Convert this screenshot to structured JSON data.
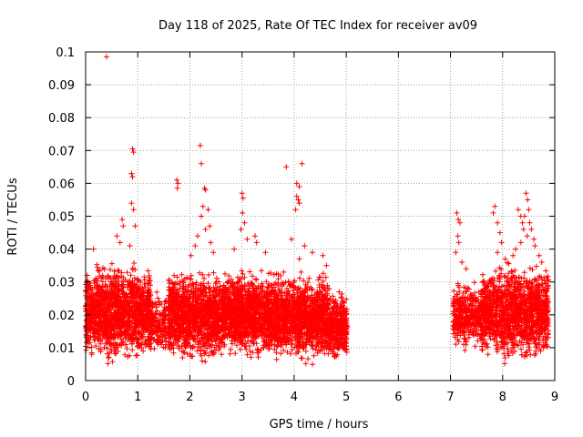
{
  "chart_data": {
    "type": "scatter",
    "title": "Day 118 of 2025, Rate Of TEC Index for receiver av09",
    "xlabel": "GPS time / hours",
    "ylabel": "ROTI / TECUs",
    "xlim": [
      0,
      9
    ],
    "ylim": [
      0,
      0.1
    ],
    "grid": true,
    "marker": "+",
    "series_color": "#ff0000",
    "x_ticks": [
      {
        "value": 0,
        "label": "0"
      },
      {
        "value": 1,
        "label": "1"
      },
      {
        "value": 2,
        "label": "2"
      },
      {
        "value": 3,
        "label": "3"
      },
      {
        "value": 4,
        "label": "4"
      },
      {
        "value": 5,
        "label": "5"
      },
      {
        "value": 6,
        "label": "6"
      },
      {
        "value": 7,
        "label": "7"
      },
      {
        "value": 8,
        "label": "8"
      },
      {
        "value": 9,
        "label": "9"
      }
    ],
    "y_ticks": [
      {
        "value": 0,
        "label": "0"
      },
      {
        "value": 0.01,
        "label": "0.01"
      },
      {
        "value": 0.02,
        "label": "0.02"
      },
      {
        "value": 0.03,
        "label": "0.03"
      },
      {
        "value": 0.04,
        "label": "0.04"
      },
      {
        "value": 0.05,
        "label": "0.05"
      },
      {
        "value": 0.06,
        "label": "0.06"
      },
      {
        "value": 0.07,
        "label": "0.07"
      },
      {
        "value": 0.08,
        "label": "0.08"
      },
      {
        "value": 0.09,
        "label": "0.09"
      },
      {
        "value": 0.1,
        "label": "0.1"
      }
    ],
    "data_segments": [
      {
        "x_start": 0.0,
        "x_end": 1.25,
        "y_min": 0.004,
        "y_max": 0.036,
        "density": 1400
      },
      {
        "x_start": 1.25,
        "x_end": 1.55,
        "y_min": 0.006,
        "y_max": 0.027,
        "density": 160
      },
      {
        "x_start": 1.58,
        "x_end": 2.65,
        "y_min": 0.004,
        "y_max": 0.034,
        "density": 1200
      },
      {
        "x_start": 2.65,
        "x_end": 3.65,
        "y_min": 0.005,
        "y_max": 0.034,
        "density": 1150
      },
      {
        "x_start": 3.65,
        "x_end": 4.65,
        "y_min": 0.004,
        "y_max": 0.033,
        "density": 1150
      },
      {
        "x_start": 4.65,
        "x_end": 5.02,
        "y_min": 0.005,
        "y_max": 0.028,
        "density": 380
      },
      {
        "x_start": 7.05,
        "x_end": 7.6,
        "y_min": 0.008,
        "y_max": 0.03,
        "density": 380
      },
      {
        "x_start": 7.6,
        "x_end": 8.88,
        "y_min": 0.004,
        "y_max": 0.036,
        "density": 1300
      }
    ],
    "outliers": [
      {
        "x": 0.4,
        "y": 0.0985
      },
      {
        "x": 0.9,
        "y": 0.0705
      },
      {
        "x": 0.92,
        "y": 0.0695
      },
      {
        "x": 0.88,
        "y": 0.063
      },
      {
        "x": 0.9,
        "y": 0.062
      },
      {
        "x": 0.88,
        "y": 0.054
      },
      {
        "x": 0.92,
        "y": 0.052
      },
      {
        "x": 0.7,
        "y": 0.049
      },
      {
        "x": 0.72,
        "y": 0.047
      },
      {
        "x": 0.66,
        "y": 0.042
      },
      {
        "x": 0.85,
        "y": 0.041
      },
      {
        "x": 0.15,
        "y": 0.04
      },
      {
        "x": 0.6,
        "y": 0.044
      },
      {
        "x": 0.95,
        "y": 0.047
      },
      {
        "x": 1.75,
        "y": 0.061
      },
      {
        "x": 1.77,
        "y": 0.06
      },
      {
        "x": 1.76,
        "y": 0.0585
      },
      {
        "x": 2.2,
        "y": 0.0715
      },
      {
        "x": 2.22,
        "y": 0.066
      },
      {
        "x": 2.28,
        "y": 0.0585
      },
      {
        "x": 2.3,
        "y": 0.058
      },
      {
        "x": 2.25,
        "y": 0.053
      },
      {
        "x": 2.35,
        "y": 0.052
      },
      {
        "x": 2.22,
        "y": 0.05
      },
      {
        "x": 2.3,
        "y": 0.046
      },
      {
        "x": 2.15,
        "y": 0.044
      },
      {
        "x": 2.1,
        "y": 0.041
      },
      {
        "x": 2.38,
        "y": 0.047
      },
      {
        "x": 2.4,
        "y": 0.042
      },
      {
        "x": 2.02,
        "y": 0.038
      },
      {
        "x": 2.45,
        "y": 0.039
      },
      {
        "x": 3.0,
        "y": 0.057
      },
      {
        "x": 3.02,
        "y": 0.0555
      },
      {
        "x": 3.01,
        "y": 0.051
      },
      {
        "x": 3.05,
        "y": 0.048
      },
      {
        "x": 2.98,
        "y": 0.046
      },
      {
        "x": 3.1,
        "y": 0.043
      },
      {
        "x": 3.25,
        "y": 0.044
      },
      {
        "x": 3.28,
        "y": 0.042
      },
      {
        "x": 2.85,
        "y": 0.04
      },
      {
        "x": 3.45,
        "y": 0.039
      },
      {
        "x": 3.85,
        "y": 0.065
      },
      {
        "x": 4.15,
        "y": 0.066
      },
      {
        "x": 4.05,
        "y": 0.06
      },
      {
        "x": 4.1,
        "y": 0.059
      },
      {
        "x": 4.05,
        "y": 0.056
      },
      {
        "x": 4.08,
        "y": 0.055
      },
      {
        "x": 4.1,
        "y": 0.054
      },
      {
        "x": 4.03,
        "y": 0.052
      },
      {
        "x": 3.95,
        "y": 0.043
      },
      {
        "x": 4.2,
        "y": 0.041
      },
      {
        "x": 4.35,
        "y": 0.039
      },
      {
        "x": 4.1,
        "y": 0.037
      },
      {
        "x": 4.55,
        "y": 0.038
      },
      {
        "x": 4.62,
        "y": 0.035
      },
      {
        "x": 7.12,
        "y": 0.051
      },
      {
        "x": 7.15,
        "y": 0.049
      },
      {
        "x": 7.18,
        "y": 0.048
      },
      {
        "x": 7.14,
        "y": 0.044
      },
      {
        "x": 7.16,
        "y": 0.042
      },
      {
        "x": 7.1,
        "y": 0.039
      },
      {
        "x": 7.22,
        "y": 0.036
      },
      {
        "x": 7.3,
        "y": 0.034
      },
      {
        "x": 7.85,
        "y": 0.053
      },
      {
        "x": 7.82,
        "y": 0.051
      },
      {
        "x": 7.9,
        "y": 0.048
      },
      {
        "x": 7.95,
        "y": 0.045
      },
      {
        "x": 7.98,
        "y": 0.042
      },
      {
        "x": 7.9,
        "y": 0.039
      },
      {
        "x": 8.05,
        "y": 0.037
      },
      {
        "x": 8.3,
        "y": 0.052
      },
      {
        "x": 8.35,
        "y": 0.05
      },
      {
        "x": 8.38,
        "y": 0.048
      },
      {
        "x": 8.4,
        "y": 0.046
      },
      {
        "x": 8.45,
        "y": 0.057
      },
      {
        "x": 8.48,
        "y": 0.055
      },
      {
        "x": 8.5,
        "y": 0.052
      },
      {
        "x": 8.42,
        "y": 0.05
      },
      {
        "x": 8.52,
        "y": 0.048
      },
      {
        "x": 8.55,
        "y": 0.046
      },
      {
        "x": 8.47,
        "y": 0.044
      },
      {
        "x": 8.6,
        "y": 0.043
      },
      {
        "x": 8.35,
        "y": 0.042
      },
      {
        "x": 8.25,
        "y": 0.04
      },
      {
        "x": 8.62,
        "y": 0.041
      },
      {
        "x": 8.7,
        "y": 0.038
      },
      {
        "x": 8.2,
        "y": 0.038
      },
      {
        "x": 8.75,
        "y": 0.036
      }
    ]
  }
}
